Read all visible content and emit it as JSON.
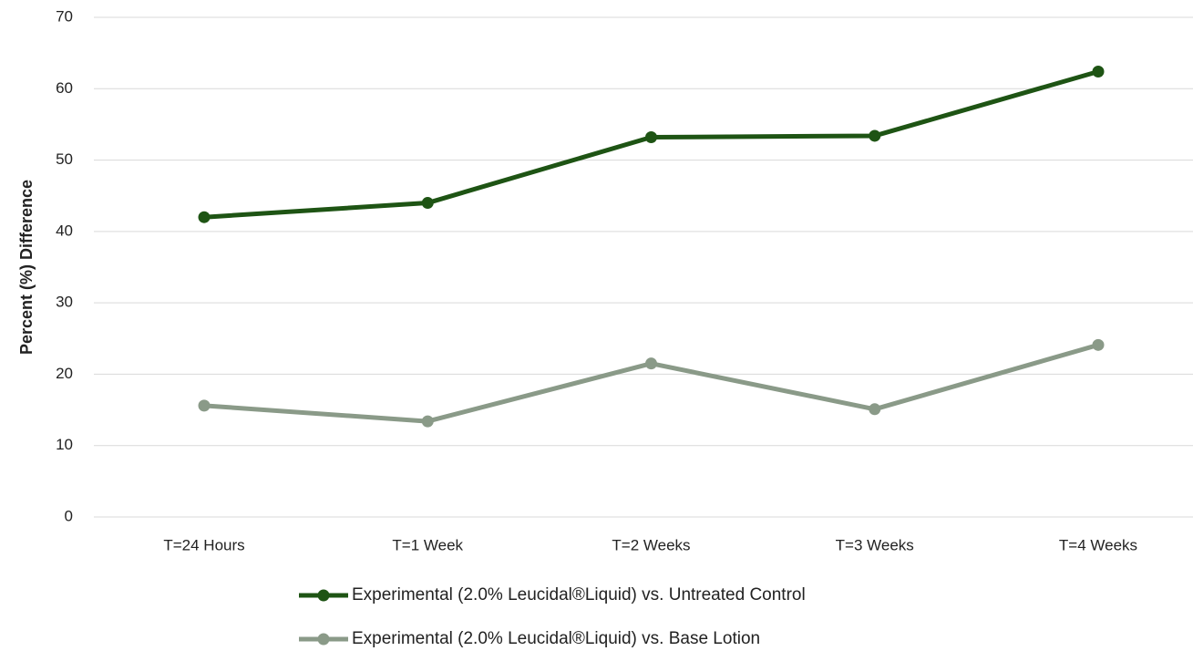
{
  "chart_data": {
    "type": "line",
    "y_label": "Percent (%) Difference",
    "categories": [
      "T=24 Hours",
      "T=1 Week",
      "T=2 Weeks",
      "T=3 Weeks",
      "T=4 Weeks"
    ],
    "series": [
      {
        "name": "Experimental (2.0% Leucidal®Liquid) vs. Untreated Control",
        "color": "#1e5414",
        "values": [
          42.0,
          44.0,
          53.2,
          53.4,
          62.4
        ]
      },
      {
        "name": "Experimental (2.0% Leucidal®Liquid) vs. Base Lotion",
        "color": "#8a9a88",
        "values": [
          15.6,
          13.4,
          21.5,
          15.1,
          24.1
        ]
      }
    ],
    "ylim": [
      0,
      70
    ],
    "yticks": [
      0,
      10,
      20,
      30,
      40,
      50,
      60,
      70
    ],
    "grid": true,
    "legend": "bottom"
  }
}
